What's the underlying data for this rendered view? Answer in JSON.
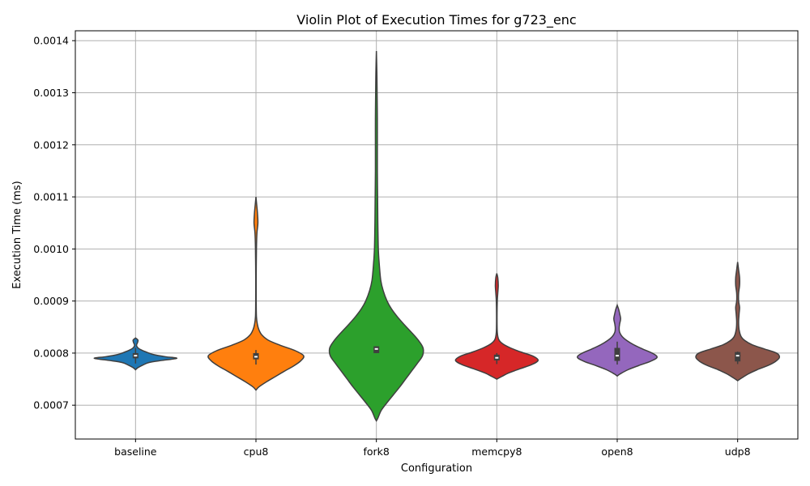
{
  "chart_data": {
    "type": "violin",
    "title": "Violin Plot of Execution Times for g723_enc",
    "xlabel": "Configuration",
    "ylabel": "Execution Time (ms)",
    "ylim": [
      0.000635,
      0.001419
    ],
    "yticks": [
      0.0007,
      0.0008,
      0.0009,
      0.001,
      0.0011,
      0.0012,
      0.0013,
      0.0014
    ],
    "ytick_labels": [
      "0.0007",
      "0.0008",
      "0.0009",
      "0.0010",
      "0.0011",
      "0.0012",
      "0.0013",
      "0.0014"
    ],
    "grid": true,
    "categories": [
      "baseline",
      "cpu8",
      "fork8",
      "memcpy8",
      "open8",
      "udp8"
    ],
    "colors": [
      "#1f77b4",
      "#ff7f0e",
      "#2ca02c",
      "#d62728",
      "#9467bd",
      "#8c564b"
    ],
    "violins": [
      {
        "name": "baseline",
        "q1": 0.00079,
        "median": 0.000795,
        "q3": 0.0008,
        "wlo": 0.00078,
        "whi": 0.00081,
        "profile": [
          [
            0.000768,
            0.0
          ],
          [
            0.000772,
            0.05
          ],
          [
            0.000777,
            0.15
          ],
          [
            0.000782,
            0.28
          ],
          [
            0.000786,
            0.55
          ],
          [
            0.00079,
            0.85
          ],
          [
            0.000793,
            0.62
          ],
          [
            0.000797,
            0.38
          ],
          [
            0.000801,
            0.25
          ],
          [
            0.000806,
            0.12
          ],
          [
            0.00081,
            0.05
          ],
          [
            0.000815,
            0.02
          ],
          [
            0.00082,
            0.04
          ],
          [
            0.000825,
            0.05
          ],
          [
            0.000829,
            0.0
          ]
        ]
      },
      {
        "name": "cpu8",
        "q1": 0.000788,
        "median": 0.000793,
        "q3": 0.0008,
        "wlo": 0.000778,
        "whi": 0.000806,
        "profile": [
          [
            0.000729,
            0.0
          ],
          [
            0.000735,
            0.06
          ],
          [
            0.000745,
            0.22
          ],
          [
            0.000755,
            0.4
          ],
          [
            0.000765,
            0.58
          ],
          [
            0.000775,
            0.77
          ],
          [
            0.000785,
            0.92
          ],
          [
            0.000795,
            0.98
          ],
          [
            0.000805,
            0.8
          ],
          [
            0.000815,
            0.5
          ],
          [
            0.000825,
            0.25
          ],
          [
            0.000835,
            0.12
          ],
          [
            0.000845,
            0.06
          ],
          [
            0.000855,
            0.03
          ],
          [
            0.00087,
            0.01
          ],
          [
            0.0009,
            0.005
          ],
          [
            0.00095,
            0.005
          ],
          [
            0.001,
            0.01
          ],
          [
            0.00103,
            0.02
          ],
          [
            0.00105,
            0.04
          ],
          [
            0.00107,
            0.03
          ],
          [
            0.001085,
            0.015
          ],
          [
            0.0011,
            0.0
          ]
        ]
      },
      {
        "name": "fork8",
        "q1": 0.0008,
        "median": 0.000808,
        "q3": 0.000813,
        "wlo": 0.0008,
        "whi": 0.000813,
        "profile": [
          [
            0.00067,
            0.0
          ],
          [
            0.000675,
            0.03
          ],
          [
            0.00069,
            0.1
          ],
          [
            0.000705,
            0.22
          ],
          [
            0.00072,
            0.35
          ],
          [
            0.000735,
            0.48
          ],
          [
            0.00075,
            0.6
          ],
          [
            0.000765,
            0.72
          ],
          [
            0.00078,
            0.84
          ],
          [
            0.000795,
            0.95
          ],
          [
            0.00081,
            0.96
          ],
          [
            0.000825,
            0.86
          ],
          [
            0.00084,
            0.72
          ],
          [
            0.000855,
            0.57
          ],
          [
            0.00087,
            0.43
          ],
          [
            0.000885,
            0.31
          ],
          [
            0.0009,
            0.22
          ],
          [
            0.00092,
            0.14
          ],
          [
            0.00094,
            0.09
          ],
          [
            0.00097,
            0.06
          ],
          [
            0.001,
            0.04
          ],
          [
            0.00105,
            0.03
          ],
          [
            0.0011,
            0.025
          ],
          [
            0.00115,
            0.02
          ],
          [
            0.0012,
            0.02
          ],
          [
            0.00125,
            0.02
          ],
          [
            0.0013,
            0.015
          ],
          [
            0.00134,
            0.01
          ],
          [
            0.00138,
            0.0
          ]
        ]
      },
      {
        "name": "memcpy8",
        "q1": 0.000786,
        "median": 0.000791,
        "q3": 0.000797,
        "wlo": 0.000779,
        "whi": 0.0008,
        "profile": [
          [
            0.00075,
            0.0
          ],
          [
            0.000755,
            0.1
          ],
          [
            0.000762,
            0.25
          ],
          [
            0.00077,
            0.48
          ],
          [
            0.000778,
            0.72
          ],
          [
            0.000786,
            0.85
          ],
          [
            0.000794,
            0.75
          ],
          [
            0.000802,
            0.5
          ],
          [
            0.00081,
            0.28
          ],
          [
            0.000818,
            0.12
          ],
          [
            0.000826,
            0.04
          ],
          [
            0.00084,
            0.01
          ],
          [
            0.00087,
            0.005
          ],
          [
            0.0009,
            0.01
          ],
          [
            0.000915,
            0.02
          ],
          [
            0.00093,
            0.03
          ],
          [
            0.000945,
            0.02
          ],
          [
            0.000953,
            0.0
          ]
        ]
      },
      {
        "name": "open8",
        "q1": 0.000785,
        "median": 0.000795,
        "q3": 0.00081,
        "wlo": 0.000778,
        "whi": 0.000822,
        "profile": [
          [
            0.000756,
            0.0
          ],
          [
            0.00076,
            0.06
          ],
          [
            0.000768,
            0.22
          ],
          [
            0.000776,
            0.44
          ],
          [
            0.000784,
            0.68
          ],
          [
            0.000792,
            0.82
          ],
          [
            0.0008,
            0.72
          ],
          [
            0.000808,
            0.52
          ],
          [
            0.000816,
            0.34
          ],
          [
            0.000824,
            0.2
          ],
          [
            0.000832,
            0.1
          ],
          [
            0.00084,
            0.05
          ],
          [
            0.000848,
            0.04
          ],
          [
            0.000856,
            0.05
          ],
          [
            0.000866,
            0.07
          ],
          [
            0.000876,
            0.05
          ],
          [
            0.000884,
            0.03
          ],
          [
            0.000892,
            0.0
          ]
        ]
      },
      {
        "name": "udp8",
        "q1": 0.000784,
        "median": 0.000795,
        "q3": 0.000802,
        "wlo": 0.000779,
        "whi": 0.000803,
        "profile": [
          [
            0.000747,
            0.0
          ],
          [
            0.000752,
            0.08
          ],
          [
            0.00076,
            0.22
          ],
          [
            0.000768,
            0.4
          ],
          [
            0.000776,
            0.62
          ],
          [
            0.000784,
            0.78
          ],
          [
            0.000792,
            0.86
          ],
          [
            0.0008,
            0.8
          ],
          [
            0.000808,
            0.55
          ],
          [
            0.000816,
            0.3
          ],
          [
            0.000824,
            0.15
          ],
          [
            0.000832,
            0.07
          ],
          [
            0.000845,
            0.03
          ],
          [
            0.00086,
            0.02
          ],
          [
            0.000875,
            0.03
          ],
          [
            0.000888,
            0.04
          ],
          [
            0.0009,
            0.02
          ],
          [
            0.000915,
            0.02
          ],
          [
            0.00093,
            0.04
          ],
          [
            0.000945,
            0.04
          ],
          [
            0.00096,
            0.02
          ],
          [
            0.000975,
            0.0
          ]
        ]
      }
    ]
  }
}
